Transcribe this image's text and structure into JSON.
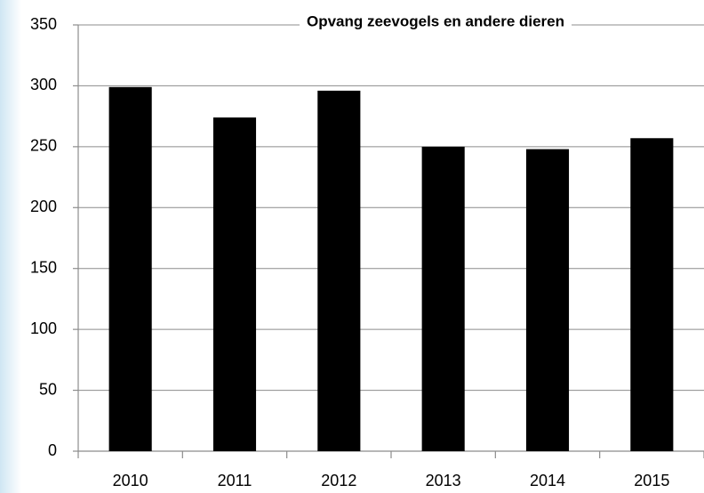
{
  "chart_data": {
    "type": "bar",
    "title": "Opvang zeevogels en andere dieren",
    "categories": [
      "2010",
      "2011",
      "2012",
      "2013",
      "2014",
      "2015"
    ],
    "values": [
      299,
      274,
      296,
      250,
      248,
      257
    ],
    "color": "#000000",
    "ylim": [
      0,
      350
    ],
    "yticks": [
      0,
      50,
      100,
      150,
      200,
      250,
      300,
      350
    ],
    "grid": true
  }
}
